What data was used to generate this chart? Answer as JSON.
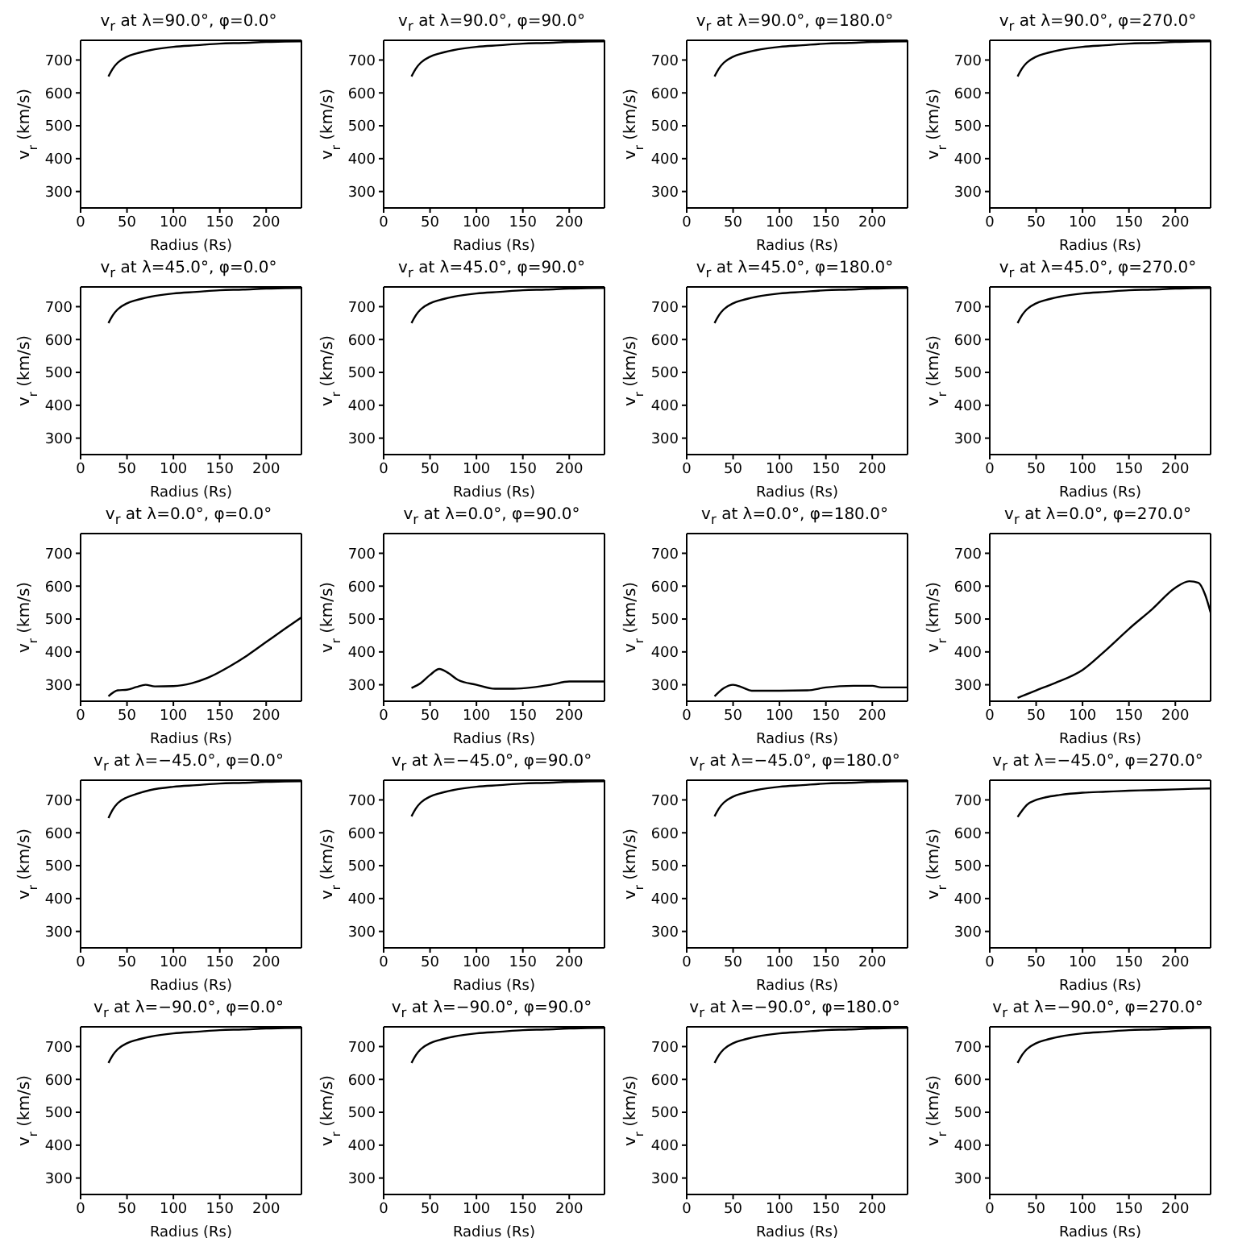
{
  "chart_data": [
    {
      "type": "line",
      "title": "v$_{r}$ at λ=90.0°, φ=0.0°",
      "xlabel": "Radius (Rs)",
      "ylabel": "v$_{r}$ (km/s)",
      "color": "#000000",
      "x": [
        30,
        35,
        40,
        50,
        60,
        75,
        100,
        125,
        150,
        175,
        200,
        220,
        238
      ],
      "values": [
        650,
        675,
        692,
        710,
        720,
        730,
        740,
        745,
        750,
        752,
        755,
        756,
        757
      ],
      "xlim": [
        0,
        238
      ],
      "ylim": [
        250,
        760
      ],
      "xticks": [
        0,
        50,
        100,
        150,
        200
      ],
      "yticks": [
        300,
        400,
        500,
        600,
        700
      ]
    },
    {
      "type": "line",
      "title": "v$_{r}$ at λ=90.0°, φ=90.0°",
      "xlabel": "Radius (Rs)",
      "ylabel": "v$_{r}$ (km/s)",
      "color": "#000000",
      "x": [
        30,
        35,
        40,
        50,
        60,
        75,
        100,
        125,
        150,
        175,
        200,
        220,
        238
      ],
      "values": [
        650,
        675,
        692,
        710,
        720,
        730,
        740,
        745,
        750,
        752,
        755,
        756,
        757
      ],
      "xlim": [
        0,
        238
      ],
      "ylim": [
        250,
        760
      ],
      "xticks": [
        0,
        50,
        100,
        150,
        200
      ],
      "yticks": [
        300,
        400,
        500,
        600,
        700
      ]
    },
    {
      "type": "line",
      "title": "v$_{r}$ at λ=90.0°, φ=180.0°",
      "xlabel": "Radius (Rs)",
      "ylabel": "v$_{r}$ (km/s)",
      "color": "#000000",
      "x": [
        30,
        35,
        40,
        50,
        60,
        75,
        100,
        125,
        150,
        175,
        200,
        220,
        238
      ],
      "values": [
        650,
        675,
        692,
        710,
        720,
        730,
        740,
        745,
        750,
        752,
        755,
        756,
        757
      ],
      "xlim": [
        0,
        238
      ],
      "ylim": [
        250,
        760
      ],
      "xticks": [
        0,
        50,
        100,
        150,
        200
      ],
      "yticks": [
        300,
        400,
        500,
        600,
        700
      ]
    },
    {
      "type": "line",
      "title": "v$_{r}$ at λ=90.0°, φ=270.0°",
      "xlabel": "Radius (Rs)",
      "ylabel": "v$_{r}$ (km/s)",
      "color": "#000000",
      "x": [
        30,
        35,
        40,
        50,
        60,
        75,
        100,
        125,
        150,
        175,
        200,
        220,
        238
      ],
      "values": [
        650,
        675,
        692,
        710,
        720,
        730,
        740,
        745,
        750,
        752,
        755,
        756,
        757
      ],
      "xlim": [
        0,
        238
      ],
      "ylim": [
        250,
        760
      ],
      "xticks": [
        0,
        50,
        100,
        150,
        200
      ],
      "yticks": [
        300,
        400,
        500,
        600,
        700
      ]
    },
    {
      "type": "line",
      "title": "v$_{r}$ at λ=45.0°, φ=0.0°",
      "xlabel": "Radius (Rs)",
      "ylabel": "v$_{r}$ (km/s)",
      "color": "#000000",
      "x": [
        30,
        35,
        40,
        50,
        60,
        75,
        100,
        125,
        150,
        175,
        200,
        220,
        238
      ],
      "values": [
        650,
        675,
        692,
        710,
        720,
        730,
        740,
        745,
        750,
        752,
        755,
        756,
        757
      ],
      "xlim": [
        0,
        238
      ],
      "ylim": [
        250,
        760
      ],
      "xticks": [
        0,
        50,
        100,
        150,
        200
      ],
      "yticks": [
        300,
        400,
        500,
        600,
        700
      ]
    },
    {
      "type": "line",
      "title": "v$_{r}$ at λ=45.0°, φ=90.0°",
      "xlabel": "Radius (Rs)",
      "ylabel": "v$_{r}$ (km/s)",
      "color": "#000000",
      "x": [
        30,
        35,
        40,
        50,
        60,
        75,
        100,
        125,
        150,
        175,
        200,
        220,
        238
      ],
      "values": [
        650,
        675,
        692,
        710,
        720,
        730,
        740,
        745,
        750,
        752,
        755,
        756,
        757
      ],
      "xlim": [
        0,
        238
      ],
      "ylim": [
        250,
        760
      ],
      "xticks": [
        0,
        50,
        100,
        150,
        200
      ],
      "yticks": [
        300,
        400,
        500,
        600,
        700
      ]
    },
    {
      "type": "line",
      "title": "v$_{r}$ at λ=45.0°, φ=180.0°",
      "xlabel": "Radius (Rs)",
      "ylabel": "v$_{r}$ (km/s)",
      "color": "#000000",
      "x": [
        30,
        35,
        40,
        50,
        60,
        75,
        100,
        125,
        150,
        175,
        200,
        220,
        238
      ],
      "values": [
        650,
        675,
        692,
        710,
        720,
        730,
        740,
        745,
        750,
        752,
        755,
        756,
        757
      ],
      "xlim": [
        0,
        238
      ],
      "ylim": [
        250,
        760
      ],
      "xticks": [
        0,
        50,
        100,
        150,
        200
      ],
      "yticks": [
        300,
        400,
        500,
        600,
        700
      ]
    },
    {
      "type": "line",
      "title": "v$_{r}$ at λ=45.0°, φ=270.0°",
      "xlabel": "Radius (Rs)",
      "ylabel": "v$_{r}$ (km/s)",
      "color": "#000000",
      "x": [
        30,
        35,
        40,
        50,
        60,
        75,
        100,
        125,
        150,
        175,
        200,
        220,
        238
      ],
      "values": [
        650,
        675,
        692,
        710,
        720,
        730,
        740,
        745,
        750,
        752,
        755,
        756,
        757
      ],
      "xlim": [
        0,
        238
      ],
      "ylim": [
        250,
        760
      ],
      "xticks": [
        0,
        50,
        100,
        150,
        200
      ],
      "yticks": [
        300,
        400,
        500,
        600,
        700
      ]
    },
    {
      "type": "line",
      "title": "v$_{r}$ at λ=0.0°, φ=0.0°",
      "xlabel": "Radius (Rs)",
      "ylabel": "v$_{r}$ (km/s)",
      "color": "#000000",
      "x": [
        30,
        40,
        50,
        60,
        70,
        80,
        100,
        120,
        140,
        160,
        180,
        200,
        220,
        238
      ],
      "values": [
        265,
        283,
        285,
        293,
        300,
        295,
        296,
        305,
        325,
        355,
        390,
        430,
        470,
        505
      ],
      "xlim": [
        0,
        238
      ],
      "ylim": [
        250,
        760
      ],
      "xticks": [
        0,
        50,
        100,
        150,
        200
      ],
      "yticks": [
        300,
        400,
        500,
        600,
        700
      ]
    },
    {
      "type": "line",
      "title": "v$_{r}$ at λ=0.0°, φ=90.0°",
      "xlabel": "Radius (Rs)",
      "ylabel": "v$_{r}$ (km/s)",
      "color": "#000000",
      "x": [
        30,
        40,
        50,
        60,
        70,
        80,
        100,
        120,
        140,
        160,
        180,
        200,
        238
      ],
      "values": [
        290,
        305,
        330,
        348,
        335,
        315,
        300,
        288,
        288,
        292,
        300,
        310,
        310
      ],
      "xlim": [
        0,
        238
      ],
      "ylim": [
        250,
        760
      ],
      "xticks": [
        0,
        50,
        100,
        150,
        200
      ],
      "yticks": [
        300,
        400,
        500,
        600,
        700
      ]
    },
    {
      "type": "line",
      "title": "v$_{r}$ at λ=0.0°, φ=180.0°",
      "xlabel": "Radius (Rs)",
      "ylabel": "v$_{r}$ (km/s)",
      "color": "#000000",
      "x": [
        30,
        40,
        50,
        60,
        70,
        100,
        130,
        150,
        180,
        200,
        210,
        238
      ],
      "values": [
        265,
        290,
        300,
        292,
        282,
        282,
        283,
        292,
        297,
        297,
        292,
        292
      ],
      "xlim": [
        0,
        238
      ],
      "ylim": [
        250,
        760
      ],
      "xticks": [
        0,
        50,
        100,
        150,
        200
      ],
      "yticks": [
        300,
        400,
        500,
        600,
        700
      ]
    },
    {
      "type": "line",
      "title": "v$_{r}$ at λ=0.0°, φ=270.0°",
      "xlabel": "Radius (Rs)",
      "ylabel": "v$_{r}$ (km/s)",
      "color": "#000000",
      "x": [
        30,
        50,
        70,
        100,
        125,
        150,
        175,
        200,
        215,
        225,
        232,
        238
      ],
      "values": [
        260,
        283,
        305,
        345,
        405,
        470,
        530,
        595,
        615,
        610,
        575,
        520
      ],
      "xlim": [
        0,
        238
      ],
      "ylim": [
        250,
        760
      ],
      "xticks": [
        0,
        50,
        100,
        150,
        200
      ],
      "yticks": [
        300,
        400,
        500,
        600,
        700
      ]
    },
    {
      "type": "line",
      "title": "v$_{r}$ at λ=−45.0°, φ=0.0°",
      "xlabel": "Radius (Rs)",
      "ylabel": "v$_{r}$ (km/s)",
      "color": "#000000",
      "x": [
        30,
        35,
        40,
        50,
        60,
        75,
        100,
        125,
        150,
        175,
        200,
        220,
        238
      ],
      "values": [
        645,
        672,
        690,
        708,
        718,
        730,
        740,
        745,
        750,
        752,
        755,
        756,
        757
      ],
      "xlim": [
        0,
        238
      ],
      "ylim": [
        250,
        760
      ],
      "xticks": [
        0,
        50,
        100,
        150,
        200
      ],
      "yticks": [
        300,
        400,
        500,
        600,
        700
      ]
    },
    {
      "type": "line",
      "title": "v$_{r}$ at λ=−45.0°, φ=90.0°",
      "xlabel": "Radius (Rs)",
      "ylabel": "v$_{r}$ (km/s)",
      "color": "#000000",
      "x": [
        30,
        35,
        40,
        50,
        60,
        75,
        100,
        125,
        150,
        175,
        200,
        220,
        238
      ],
      "values": [
        650,
        675,
        692,
        710,
        720,
        730,
        740,
        745,
        750,
        752,
        755,
        756,
        757
      ],
      "xlim": [
        0,
        238
      ],
      "ylim": [
        250,
        760
      ],
      "xticks": [
        0,
        50,
        100,
        150,
        200
      ],
      "yticks": [
        300,
        400,
        500,
        600,
        700
      ]
    },
    {
      "type": "line",
      "title": "v$_{r}$ at λ=−45.0°, φ=180.0°",
      "xlabel": "Radius (Rs)",
      "ylabel": "v$_{r}$ (km/s)",
      "color": "#000000",
      "x": [
        30,
        35,
        40,
        50,
        60,
        75,
        100,
        125,
        150,
        175,
        200,
        220,
        238
      ],
      "values": [
        650,
        675,
        692,
        710,
        720,
        730,
        740,
        745,
        750,
        752,
        755,
        756,
        757
      ],
      "xlim": [
        0,
        238
      ],
      "ylim": [
        250,
        760
      ],
      "xticks": [
        0,
        50,
        100,
        150,
        200
      ],
      "yticks": [
        300,
        400,
        500,
        600,
        700
      ]
    },
    {
      "type": "line",
      "title": "v$_{r}$ at λ=−45.0°, φ=270.0°",
      "xlabel": "Radius (Rs)",
      "ylabel": "v$_{r}$ (km/s)",
      "color": "#000000",
      "x": [
        30,
        35,
        40,
        50,
        60,
        75,
        100,
        125,
        150,
        175,
        200,
        220,
        238
      ],
      "values": [
        648,
        668,
        685,
        700,
        708,
        715,
        722,
        725,
        728,
        730,
        732,
        734,
        735
      ],
      "xlim": [
        0,
        238
      ],
      "ylim": [
        250,
        760
      ],
      "xticks": [
        0,
        50,
        100,
        150,
        200
      ],
      "yticks": [
        300,
        400,
        500,
        600,
        700
      ]
    },
    {
      "type": "line",
      "title": "v$_{r}$ at λ=−90.0°, φ=0.0°",
      "xlabel": "Radius (Rs)",
      "ylabel": "v$_{r}$ (km/s)",
      "color": "#000000",
      "x": [
        30,
        35,
        40,
        50,
        60,
        75,
        100,
        125,
        150,
        175,
        200,
        220,
        238
      ],
      "values": [
        650,
        675,
        692,
        710,
        720,
        730,
        740,
        745,
        750,
        752,
        755,
        756,
        757
      ],
      "xlim": [
        0,
        238
      ],
      "ylim": [
        250,
        760
      ],
      "xticks": [
        0,
        50,
        100,
        150,
        200
      ],
      "yticks": [
        300,
        400,
        500,
        600,
        700
      ]
    },
    {
      "type": "line",
      "title": "v$_{r}$ at λ=−90.0°, φ=90.0°",
      "xlabel": "Radius (Rs)",
      "ylabel": "v$_{r}$ (km/s)",
      "color": "#000000",
      "x": [
        30,
        35,
        40,
        50,
        60,
        75,
        100,
        125,
        150,
        175,
        200,
        220,
        238
      ],
      "values": [
        650,
        675,
        692,
        710,
        720,
        730,
        740,
        745,
        750,
        752,
        755,
        756,
        757
      ],
      "xlim": [
        0,
        238
      ],
      "ylim": [
        250,
        760
      ],
      "xticks": [
        0,
        50,
        100,
        150,
        200
      ],
      "yticks": [
        300,
        400,
        500,
        600,
        700
      ]
    },
    {
      "type": "line",
      "title": "v$_{r}$ at λ=−90.0°, φ=180.0°",
      "xlabel": "Radius (Rs)",
      "ylabel": "v$_{r}$ (km/s)",
      "color": "#000000",
      "x": [
        30,
        35,
        40,
        50,
        60,
        75,
        100,
        125,
        150,
        175,
        200,
        220,
        238
      ],
      "values": [
        650,
        675,
        692,
        710,
        720,
        730,
        740,
        745,
        750,
        752,
        755,
        756,
        757
      ],
      "xlim": [
        0,
        238
      ],
      "ylim": [
        250,
        760
      ],
      "xticks": [
        0,
        50,
        100,
        150,
        200
      ],
      "yticks": [
        300,
        400,
        500,
        600,
        700
      ]
    },
    {
      "type": "line",
      "title": "v$_{r}$ at λ=−90.0°, φ=270.0°",
      "xlabel": "Radius (Rs)",
      "ylabel": "v$_{r}$ (km/s)",
      "color": "#000000",
      "x": [
        30,
        35,
        40,
        50,
        60,
        75,
        100,
        125,
        150,
        175,
        200,
        220,
        238
      ],
      "values": [
        650,
        675,
        692,
        710,
        720,
        730,
        740,
        745,
        750,
        752,
        755,
        756,
        757
      ],
      "xlim": [
        0,
        238
      ],
      "ylim": [
        250,
        760
      ],
      "xticks": [
        0,
        50,
        100,
        150,
        200
      ],
      "yticks": [
        300,
        400,
        500,
        600,
        700
      ]
    }
  ]
}
